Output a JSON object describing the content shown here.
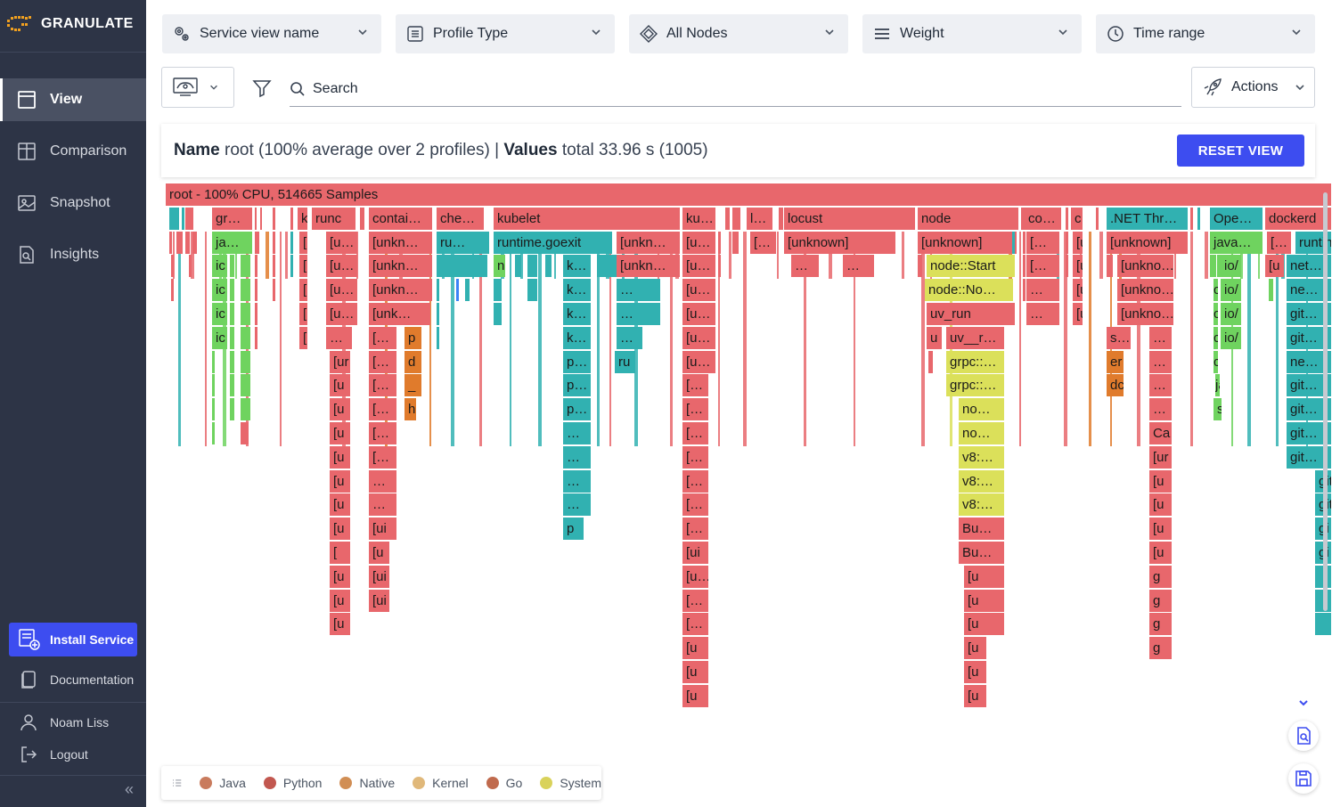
{
  "brand": {
    "name": "GRANULATE"
  },
  "sidebar": {
    "items": [
      {
        "label": "View",
        "icon": "view-icon",
        "active": true
      },
      {
        "label": "Comparison",
        "icon": "comparison-icon",
        "active": false
      },
      {
        "label": "Snapshot",
        "icon": "snapshot-icon",
        "active": false
      },
      {
        "label": "Insights",
        "icon": "insights-icon",
        "active": false
      }
    ],
    "install_label": "Install Service",
    "documentation_label": "Documentation",
    "user_name": "Noam Liss",
    "logout_label": "Logout"
  },
  "toolbar": {
    "dropdowns": [
      {
        "label": "Service view name",
        "icon": "service-icon"
      },
      {
        "label": "Profile Type",
        "icon": "profile-list-icon"
      },
      {
        "label": "All Nodes",
        "icon": "nodes-icon"
      },
      {
        "label": "Weight",
        "icon": "weight-icon"
      },
      {
        "label": "Time range",
        "icon": "clock-icon"
      }
    ],
    "search_placeholder": "Search",
    "actions_label": "Actions"
  },
  "info": {
    "name_label": "Name",
    "name_value": "root (100% average over 2 profiles)",
    "separator": "|",
    "values_label": "Values",
    "values_value": "total 33.96 s (1005)",
    "reset_label": "RESET VIEW"
  },
  "legend": [
    {
      "label": "Java",
      "color": "#c97b5d"
    },
    {
      "label": "Python",
      "color": "#c2574f"
    },
    {
      "label": "Native",
      "color": "#d18e54"
    },
    {
      "label": "Kernel",
      "color": "#e0b87a"
    },
    {
      "label": "Go",
      "color": "#c06a4d"
    },
    {
      "label": "System",
      "color": "#d9d25a"
    }
  ],
  "colors": {
    "red": "#e8676c",
    "green": "#6fd35f",
    "teal": "#31b1b1",
    "orange": "#e07b2c",
    "yellow": "#dbe05a",
    "accent": "#3d4df0"
  },
  "flame_labels": [
    [
      "root - 100% CPU, 514665 Samples"
    ],
    [
      "gr…",
      "k",
      "runc",
      "contai…",
      "che…",
      "kubelet",
      "ku…",
      "l…",
      "locust",
      "node",
      "co…",
      "c",
      ".NET Thr…",
      "Ope…",
      "dockerd"
    ],
    [
      "ja…",
      "[",
      "[u…",
      "[unkn…",
      "ru…",
      "runtime.goexit",
      "[unkn…",
      "[u…",
      "[…",
      "[unknown]",
      "[unknown]",
      "[…",
      "[u",
      "[unknown]",
      "java…",
      "[…",
      "runtin"
    ],
    [
      "ic",
      "[",
      "[u…",
      "[unkn…",
      "n",
      "k…",
      "[unkn…",
      "[u…",
      "…",
      "…",
      "node::Start",
      "[…",
      "[u",
      "[unkno…",
      "cc",
      "io/",
      "[u",
      "net…"
    ],
    [
      "ic",
      "[",
      "[u…",
      "[unkn…",
      "k…",
      "…",
      "[u…",
      "node::No…",
      "…",
      "[u",
      "[unkno…",
      "cc",
      "io/",
      "ne…"
    ],
    [
      "ic",
      "[",
      "[u…",
      "[unk…",
      "k…",
      "…",
      "[u…",
      "uv_run",
      "…",
      "[u",
      "[unkno…",
      "c",
      "io/",
      "git…"
    ],
    [
      "ic",
      "[",
      "…",
      "[…",
      "p",
      "k…",
      "…",
      "[u…",
      "u",
      "uv__r…",
      "s…",
      "…",
      "c",
      "io/",
      "git…"
    ],
    [
      "[ur",
      "[…",
      "d",
      "p…",
      "ru",
      "[u…",
      "grpc::…",
      "er",
      "…",
      "c",
      "ne…"
    ],
    [
      "[u",
      "[…",
      "_",
      "p…",
      "[…",
      "grpc::…",
      "dc",
      "…",
      "ja",
      "git…"
    ],
    [
      "[u",
      "[…",
      "h",
      "p…",
      "[…",
      "no…",
      "…",
      "s",
      "git…"
    ],
    [
      "[u",
      "[…",
      "…",
      "[…",
      "no…",
      "Ca",
      "git…"
    ],
    [
      "[u",
      "[…",
      "…",
      "[…",
      "v8:…",
      "[ur",
      "git…"
    ],
    [
      "[u",
      "…",
      "…",
      "[…",
      "v8:…",
      "[u",
      "git"
    ],
    [
      "[u",
      "…",
      "…",
      "[…",
      "v8:…",
      "[u",
      "git"
    ],
    [
      "[u",
      "[ui",
      "p",
      "[…",
      "Bu…",
      "[u",
      "gi"
    ],
    [
      "[",
      "[u",
      "[ui",
      "Bu…",
      "[u",
      "gi"
    ],
    [
      "[u",
      "[ui",
      "[u…",
      "[u",
      "g"
    ],
    [
      "[u",
      "[ui",
      "[…",
      "[u",
      "g"
    ],
    [
      "[u",
      "[…",
      "[u",
      "g"
    ],
    [
      "[u",
      "[u",
      "g"
    ],
    [
      "[u",
      "[u"
    ],
    [
      "[u",
      "[u"
    ]
  ]
}
